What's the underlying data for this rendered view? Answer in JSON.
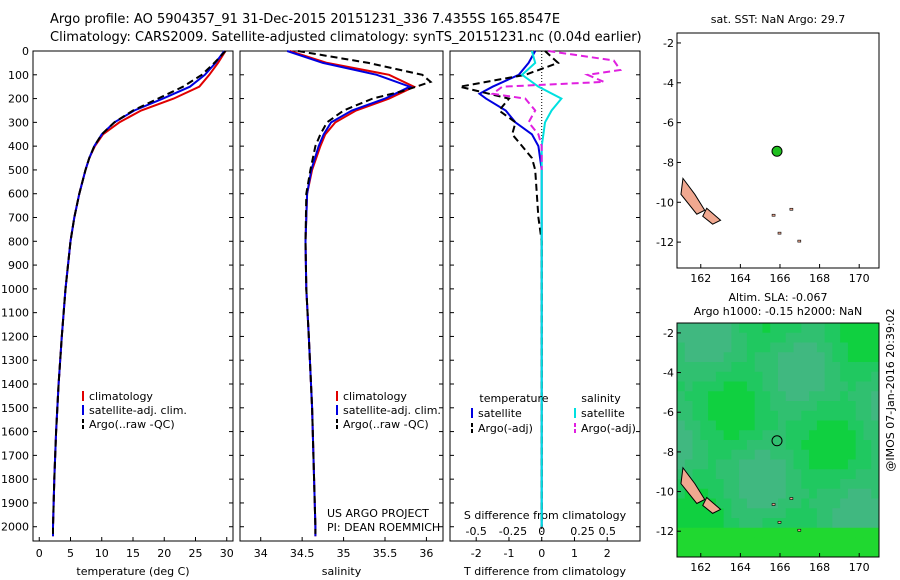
{
  "header": {
    "line1": "Argo profile: AO 5904357_91 31-Dec-2015 20151231_336 7.4355S 165.8547E",
    "line2": "Climatology: CARS2009. Satellite-adjusted climatology: synTS_20151231.nc (0.04d earlier)"
  },
  "chart_data": [
    {
      "type": "line",
      "xlabel": "temperature (deg C)",
      "ylabel": "",
      "xlim": [
        -1,
        31
      ],
      "ylim": [
        2060,
        0
      ],
      "xticks": [
        0,
        5,
        10,
        15,
        20,
        25,
        30
      ],
      "yticks": [
        0,
        100,
        200,
        300,
        400,
        500,
        600,
        700,
        800,
        900,
        1000,
        1100,
        1200,
        1300,
        1400,
        1500,
        1600,
        1700,
        1800,
        1900,
        2000
      ],
      "legend": [
        "climatology",
        "satellite-adj. clim.",
        "Argo(..raw -QC)"
      ],
      "series": [
        {
          "name": "climatology",
          "color": "#e00000",
          "dash": "solid",
          "depth": [
            0,
            50,
            100,
            150,
            200,
            250,
            300,
            350,
            400,
            450,
            500,
            600,
            700,
            800,
            900,
            1000,
            1200,
            1400,
            1600,
            1800,
            2000,
            2040
          ],
          "values": [
            29.8,
            28.6,
            27.2,
            25.6,
            21.5,
            16.3,
            12.8,
            10.2,
            8.9,
            8.0,
            7.4,
            6.4,
            5.6,
            5.0,
            4.6,
            4.2,
            3.6,
            3.1,
            2.7,
            2.4,
            2.2,
            2.2
          ]
        },
        {
          "name": "satellite-adj. clim.",
          "color": "#0000e0",
          "dash": "solid",
          "depth": [
            0,
            50,
            100,
            150,
            200,
            250,
            300,
            350,
            400,
            450,
            500,
            600,
            700,
            800,
            900,
            1000,
            1200,
            1400,
            1600,
            1800,
            2000,
            2040
          ],
          "values": [
            29.6,
            28.2,
            26.5,
            24.1,
            19.8,
            15.2,
            12.0,
            10.0,
            8.8,
            8.0,
            7.4,
            6.4,
            5.6,
            5.0,
            4.6,
            4.2,
            3.6,
            3.1,
            2.7,
            2.4,
            2.2,
            2.2
          ]
        },
        {
          "name": "Argo(..raw -QC)",
          "color": "#000000",
          "dash": "dashed",
          "depth": [
            0,
            50,
            100,
            150,
            200,
            250,
            300,
            350,
            400,
            450,
            500,
            600,
            700,
            800,
            900,
            1000,
            1200,
            1400,
            1600,
            1800,
            2000,
            2030
          ],
          "values": [
            29.8,
            28.0,
            26.0,
            23.0,
            19.0,
            15.0,
            12.0,
            10.0,
            8.8,
            8.0,
            7.4,
            6.4,
            5.6,
            5.0,
            4.6,
            4.2,
            3.6,
            3.1,
            2.7,
            2.4,
            2.2,
            2.2
          ]
        }
      ]
    },
    {
      "type": "line",
      "xlabel": "salinity",
      "xlim": [
        33.75,
        36.2
      ],
      "ylim": [
        2060,
        0
      ],
      "xticks": [
        34,
        34.5,
        35,
        35.5,
        36
      ],
      "legend": [
        "climatology",
        "satellite-adj. clim.",
        "Argo(..raw -QC)"
      ],
      "series": [
        {
          "name": "climatology",
          "color": "#e00000",
          "dash": "solid",
          "depth": [
            0,
            50,
            100,
            150,
            200,
            250,
            300,
            350,
            400,
            500,
            600,
            800,
            1000,
            1200,
            1500,
            2000,
            2040
          ],
          "values": [
            34.35,
            34.8,
            35.55,
            35.85,
            35.55,
            35.15,
            34.9,
            34.78,
            34.72,
            34.62,
            34.56,
            34.54,
            34.55,
            34.58,
            34.62,
            34.66,
            34.66
          ]
        },
        {
          "name": "satellite-adj. clim.",
          "color": "#0000e0",
          "dash": "solid",
          "depth": [
            0,
            50,
            100,
            150,
            200,
            250,
            300,
            350,
            400,
            500,
            600,
            800,
            1000,
            1200,
            1500,
            2000,
            2040
          ],
          "values": [
            34.32,
            34.75,
            35.4,
            35.8,
            35.5,
            35.1,
            34.85,
            34.76,
            34.7,
            34.61,
            34.56,
            34.54,
            34.55,
            34.58,
            34.62,
            34.66,
            34.66
          ]
        },
        {
          "name": "Argo(..raw -QC)",
          "color": "#000000",
          "dash": "dashed",
          "depth": [
            0,
            50,
            100,
            130,
            170,
            200,
            250,
            300,
            350,
            400,
            500,
            600,
            800,
            1000,
            1200,
            1500,
            2000,
            2030
          ],
          "values": [
            34.45,
            35.3,
            35.95,
            36.05,
            35.7,
            35.35,
            35.0,
            34.8,
            34.72,
            34.66,
            34.6,
            34.55,
            34.54,
            34.55,
            34.58,
            34.62,
            34.66,
            34.66
          ]
        }
      ],
      "annotation": [
        "US ARGO PROJECT",
        "PI: DEAN ROEMMICH"
      ]
    },
    {
      "type": "line",
      "xlabel": "T difference from climatology",
      "xlabel_top": "S difference from climatology",
      "xlim": [
        -2.8,
        3
      ],
      "ylim": [
        2060,
        0
      ],
      "xticks": [
        -2,
        -1,
        0,
        1,
        2
      ],
      "xticks_top": [
        "-0.5",
        "-0.25",
        "0",
        "0.25",
        "0.5"
      ],
      "legend_titles": [
        "temperature",
        "salinity"
      ],
      "legend": [
        "satellite",
        "Argo(-adj)",
        "satellite",
        "Argo(-adj)"
      ],
      "series": [
        {
          "name": "temperature satellite",
          "color": "#0000e0",
          "dash": "solid",
          "depth": [
            0,
            50,
            100,
            150,
            180,
            200,
            250,
            300,
            350,
            400,
            500,
            700,
            1000,
            1500,
            2000
          ],
          "values": [
            -0.2,
            -0.4,
            -0.7,
            -1.5,
            -1.9,
            -1.7,
            -1.1,
            -0.8,
            -0.3,
            -0.1,
            0,
            0,
            0,
            0,
            0
          ]
        },
        {
          "name": "temperature Argo(-adj)",
          "color": "#000000",
          "dash": "dashed",
          "depth": [
            0,
            50,
            100,
            150,
            200,
            250,
            300,
            350,
            400,
            450,
            500,
            600,
            700,
            800,
            1000,
            1300,
            1600,
            2000
          ],
          "values": [
            0.1,
            0.5,
            -0.5,
            -2.5,
            -1.0,
            -1.3,
            -0.8,
            -0.9,
            -0.6,
            -0.3,
            -0.2,
            -0.15,
            -0.1,
            0,
            0,
            0,
            0,
            0
          ]
        },
        {
          "name": "salinity satellite",
          "color": "#00e0e0",
          "dash": "solid",
          "depth": [
            0,
            50,
            100,
            150,
            200,
            250,
            300,
            350,
            400,
            500,
            700,
            1000,
            1500,
            2000
          ],
          "values": [
            -0.3,
            -0.2,
            -0.6,
            -0.1,
            0.6,
            0.3,
            0.1,
            0.05,
            0,
            0,
            0,
            0,
            0,
            0
          ]
        },
        {
          "name": "salinity Argo(-adj)",
          "color": "#e020e0",
          "dash": "dashed",
          "depth": [
            0,
            40,
            80,
            100,
            130,
            150,
            180,
            200,
            250,
            300,
            350,
            400,
            500
          ],
          "values": [
            0.2,
            2.2,
            2.4,
            1.4,
            1.9,
            -1.2,
            -1.5,
            -0.5,
            -0.2,
            -0.4,
            -0.1,
            0,
            0
          ]
        }
      ]
    },
    {
      "type": "scatter",
      "title": "sat. SST: NaN Argo: 29.7",
      "xlim": [
        160.8,
        171
      ],
      "ylim": [
        -13.3,
        -1.5
      ],
      "xticks": [
        162,
        164,
        166,
        168,
        170
      ],
      "yticks": [
        -2,
        -4,
        -6,
        -8,
        -10,
        -12
      ],
      "x": [
        165.85
      ],
      "y": [
        -7.44
      ],
      "marker_color": "#20c020",
      "land_color": "#f0a890"
    },
    {
      "type": "heatmap",
      "title": "Altim. SLA: -0.067",
      "subtitle": "Argo h1000: -0.15 h2000: NaN",
      "xlim": [
        160.8,
        171
      ],
      "ylim": [
        -13.3,
        -1.5
      ],
      "xticks": [
        162,
        164,
        166,
        168,
        170
      ],
      "yticks": [
        -2,
        -4,
        -6,
        -8,
        -10,
        -12
      ],
      "x": [
        165.85
      ],
      "y": [
        -7.44
      ],
      "field_colors": [
        "#10d040",
        "#20c860",
        "#30c070",
        "#40b880",
        "#20d830"
      ],
      "land_color": "#f0a890"
    }
  ],
  "watermark": "@IMOS 07-Jan-2016 20:39:02"
}
